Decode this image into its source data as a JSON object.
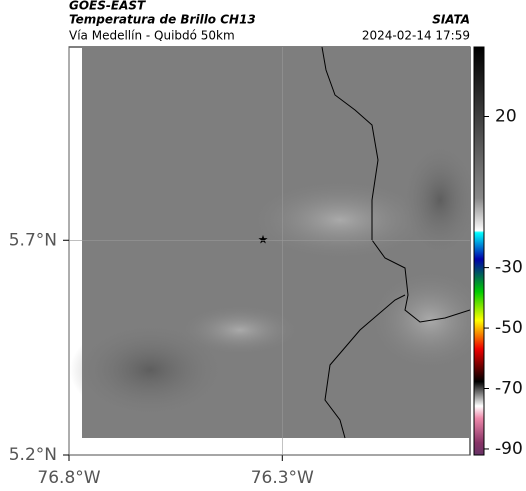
{
  "header": {
    "source": "GOES-EAST",
    "title": "Temperatura de Brillo CH13",
    "subtitle": "Vía Medellín - Quibdó 50km",
    "agency": "SIATA",
    "datetime": "2024-02-14 17:59"
  },
  "map": {
    "xlim": [
      -76.8,
      -75.86
    ],
    "ylim": [
      5.2,
      6.15
    ],
    "xticks": [
      {
        "value": -76.8,
        "label": "76.8°W"
      },
      {
        "value": -76.3,
        "label": "76.3°W"
      }
    ],
    "yticks": [
      {
        "value": 5.2,
        "label": "5.2°N"
      },
      {
        "value": 5.7,
        "label": "5.7°N"
      }
    ]
  },
  "colorbar": {
    "lim": [
      -92,
      43
    ],
    "ticks": [
      20,
      -30,
      -50,
      -70,
      -90
    ]
  }
}
